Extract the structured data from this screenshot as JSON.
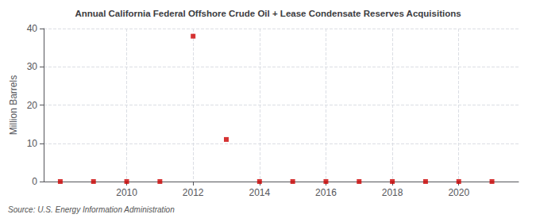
{
  "chart_data": {
    "type": "scatter",
    "title": "Annual California Federal Offshore Crude Oil + Lease Condensate Reserves Acquisitions",
    "ylabel": "Million Barrels",
    "annotation": "Source: U.S. Energy Information Administration",
    "x": [
      2008,
      2009,
      2010,
      2011,
      2012,
      2013,
      2014,
      2015,
      2016,
      2017,
      2018,
      2019,
      2020,
      2021
    ],
    "values": [
      0,
      0,
      0,
      0,
      38.0,
      11.0,
      0,
      0,
      0,
      0,
      0,
      0,
      0,
      0
    ],
    "color": "#cc0000",
    "marker": "square",
    "xlim": [
      2007.5,
      2021.8
    ],
    "ylim": [
      0,
      40
    ],
    "xticks": [
      2010,
      2012,
      2014,
      2016,
      2018,
      2020
    ],
    "yticks": [
      0,
      10,
      20,
      30,
      40
    ],
    "grid": true
  }
}
